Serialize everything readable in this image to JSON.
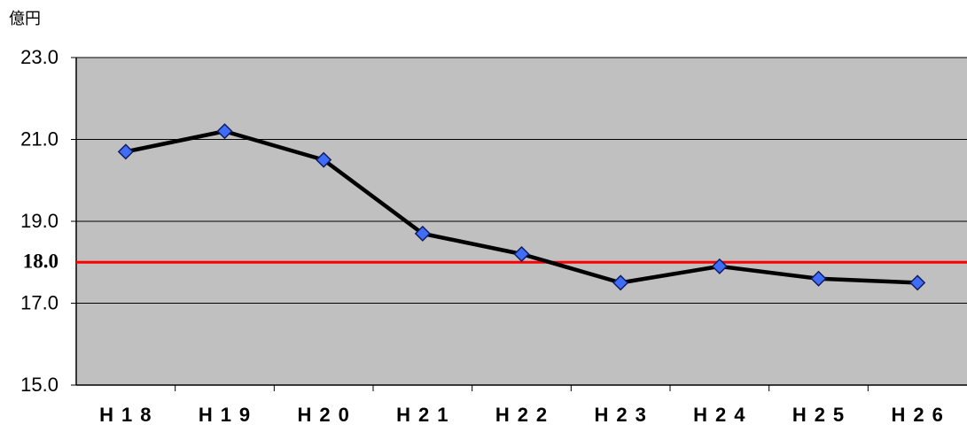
{
  "chart_data": {
    "type": "line",
    "y_unit_label": "億円",
    "categories": [
      "H18",
      "H19",
      "H20",
      "H21",
      "H22",
      "H23",
      "H24",
      "H25",
      "H26"
    ],
    "series": [
      {
        "color": "#000000",
        "marker_color": "#3f6df5",
        "values": [
          20.7,
          21.2,
          20.5,
          18.7,
          18.2,
          17.5,
          17.9,
          17.6,
          17.5
        ]
      }
    ],
    "ylim": [
      15,
      23
    ],
    "yticks": [
      {
        "value": 15,
        "label": "15.0"
      },
      {
        "value": 17,
        "label": "17.0"
      },
      {
        "value": 19,
        "label": "19.0"
      },
      {
        "value": 21,
        "label": "21.0"
      },
      {
        "value": 23,
        "label": "23.0"
      }
    ],
    "reference_line": {
      "value": 18,
      "label": "18.0",
      "color": "#ff0000"
    },
    "grid": true,
    "plot_background": "#c0c0c0"
  }
}
